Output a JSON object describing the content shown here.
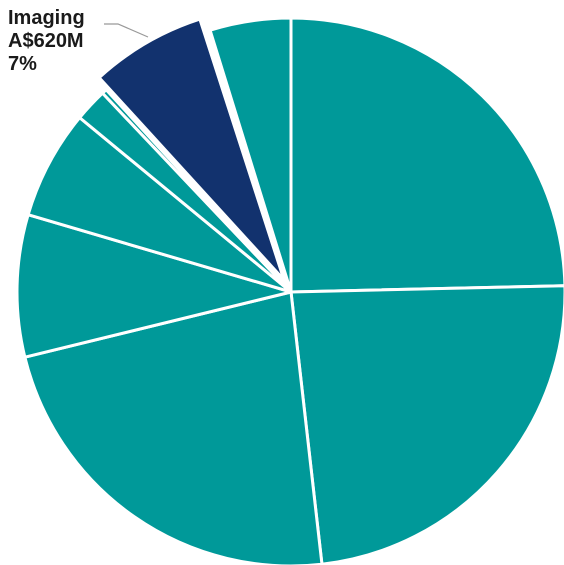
{
  "chart_data": {
    "type": "pie",
    "title": "",
    "slices": [
      {
        "value": 25.3,
        "color": "#009999",
        "highlight": false
      },
      {
        "value": 24.2,
        "color": "#009999",
        "highlight": false
      },
      {
        "value": 23.6,
        "color": "#009999",
        "highlight": false
      },
      {
        "value": 8.6,
        "color": "#009999",
        "highlight": false
      },
      {
        "value": 6.6,
        "color": "#009999",
        "highlight": false
      },
      {
        "value": 2.0,
        "color": "#009999",
        "highlight": false
      },
      {
        "value": 0.3,
        "color": "#009999",
        "highlight": false
      },
      {
        "value": 7.0,
        "color": "#12326e",
        "highlight": true
      },
      {
        "value": 0.2,
        "color": "#ffffff",
        "highlight": false
      },
      {
        "value": 4.9,
        "color": "#009999",
        "highlight": false
      }
    ],
    "callout": {
      "name": "Imaging",
      "amount": "A$620M",
      "percent": "7%"
    },
    "colors": {
      "segment": "#009999",
      "highlight": "#12326e",
      "separator": "#ffffff",
      "leader_line": "#999999"
    }
  }
}
